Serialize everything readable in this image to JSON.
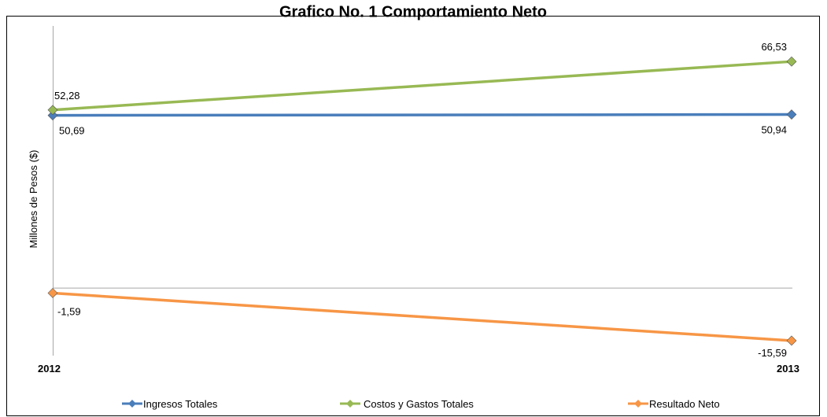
{
  "chart_data": {
    "type": "line",
    "title": "Grafico No. 1 Comportamiento Neto",
    "xlabel": "",
    "ylabel": "Millones de Pesos ($)",
    "categories": [
      "2012",
      "2013"
    ],
    "ylim": [
      -20,
      80
    ],
    "grid": false,
    "legend_position": "bottom",
    "series": [
      {
        "name": "Ingresos Totales",
        "color": "#4a7ebb",
        "values": [
          50.69,
          50.94
        ],
        "labels": [
          "50,69",
          "50,94"
        ]
      },
      {
        "name": "Costos y Gastos Totales",
        "color": "#98b954",
        "values": [
          52.28,
          66.53
        ],
        "labels": [
          "52,28",
          "66,53"
        ]
      },
      {
        "name": "Resultado Neto",
        "color": "#f79646",
        "values": [
          -1.59,
          -15.59
        ],
        "labels": [
          "-1,59",
          "-15,59"
        ]
      }
    ]
  }
}
